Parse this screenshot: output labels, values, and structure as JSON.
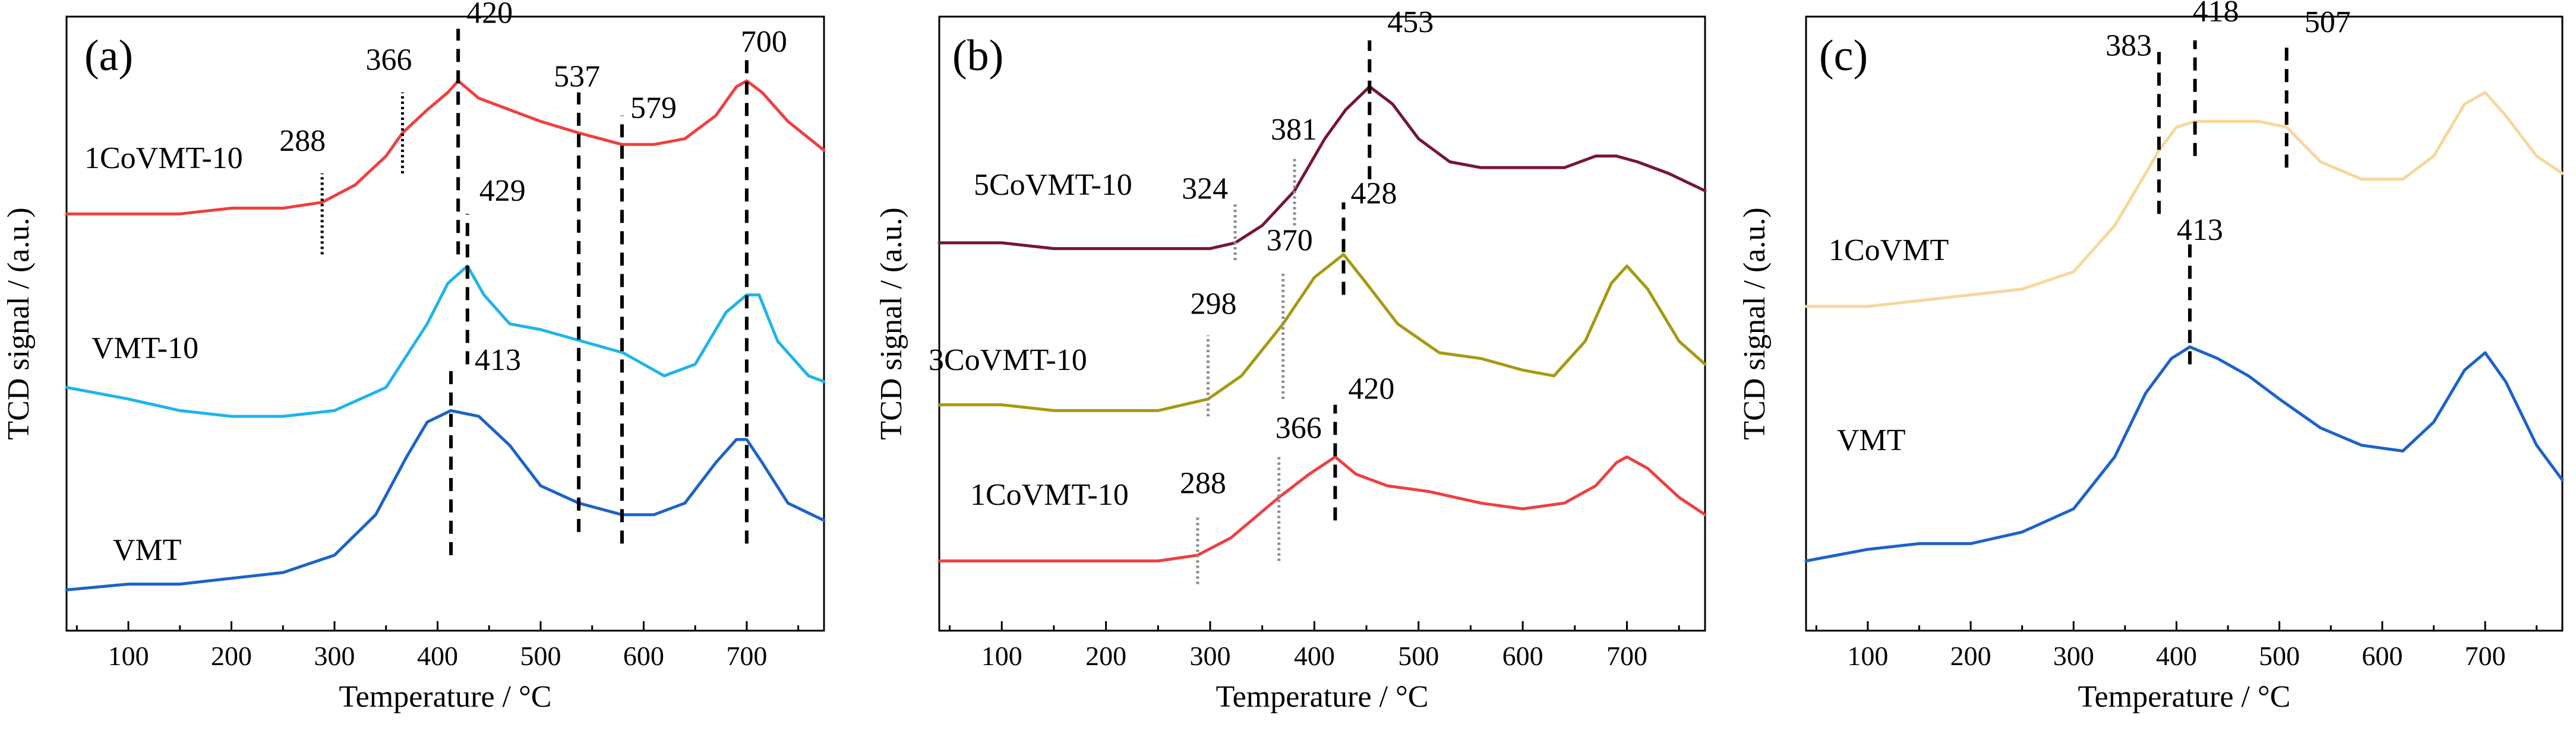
{
  "figure": {
    "xlabel": "Temperature / °C",
    "ylabel": "TCD signal / (a.u.)",
    "xlim": [
      40,
      775
    ],
    "x_ticks": [
      100,
      200,
      300,
      400,
      500,
      600,
      700
    ]
  },
  "colors": {
    "VMT": "#1c63c9",
    "VMT-10": "#1fb4ec",
    "1CoVMT-10": "#ee4040",
    "3CoVMT-10": "#a59a12",
    "5CoVMT-10": "#76143c",
    "1CoVMT": "#f7d79b",
    "black_marker": "#000000",
    "gray_marker": "#8c8c8c"
  },
  "chart_data": [
    {
      "type": "line",
      "panel": "(a)",
      "xlabel": "Temperature / °C",
      "ylabel": "TCD signal / (a.u.)",
      "xlim": [
        40,
        775
      ],
      "ylim": [
        0,
        1
      ],
      "series": [
        {
          "name": "1CoVMT-10",
          "x": [
            40,
            100,
            150,
            200,
            250,
            288,
            320,
            350,
            366,
            390,
            410,
            420,
            440,
            470,
            500,
            537,
            579,
            610,
            640,
            670,
            690,
            700,
            715,
            740,
            775
          ],
          "y": [
            0.7,
            0.7,
            0.7,
            0.71,
            0.71,
            0.72,
            0.75,
            0.8,
            0.84,
            0.88,
            0.91,
            0.93,
            0.9,
            0.88,
            0.86,
            0.84,
            0.82,
            0.82,
            0.83,
            0.87,
            0.92,
            0.93,
            0.91,
            0.86,
            0.81
          ]
        },
        {
          "name": "VMT-10",
          "x": [
            40,
            100,
            150,
            200,
            250,
            300,
            350,
            390,
            410,
            429,
            445,
            470,
            500,
            540,
            580,
            620,
            650,
            680,
            700,
            712,
            730,
            760,
            775
          ],
          "y": [
            0.4,
            0.38,
            0.36,
            0.35,
            0.35,
            0.36,
            0.4,
            0.51,
            0.58,
            0.61,
            0.56,
            0.51,
            0.5,
            0.48,
            0.46,
            0.42,
            0.44,
            0.53,
            0.56,
            0.56,
            0.48,
            0.42,
            0.41
          ]
        },
        {
          "name": "VMT",
          "x": [
            40,
            100,
            150,
            200,
            250,
            300,
            340,
            370,
            390,
            413,
            440,
            470,
            500,
            537,
            579,
            610,
            640,
            670,
            690,
            700,
            715,
            740,
            775
          ],
          "y": [
            0.05,
            0.06,
            0.06,
            0.07,
            0.08,
            0.11,
            0.18,
            0.28,
            0.34,
            0.36,
            0.35,
            0.3,
            0.23,
            0.2,
            0.18,
            0.18,
            0.2,
            0.27,
            0.31,
            0.31,
            0.27,
            0.2,
            0.17
          ]
        }
      ],
      "series_labels": [
        {
          "text": "1CoVMT-10",
          "series": "1CoVMT-10"
        },
        {
          "text": "VMT-10",
          "series": "VMT-10"
        },
        {
          "text": "VMT",
          "series": "VMT"
        }
      ],
      "markers": [
        {
          "x": 288,
          "label": "288",
          "style": "dotted",
          "color": "black_marker",
          "y_from": 0.63,
          "y_to": 0.77
        },
        {
          "x": 366,
          "label": "366",
          "style": "dotted",
          "color": "black_marker",
          "y_from": 0.77,
          "y_to": 0.91
        },
        {
          "x": 420,
          "label": "420",
          "style": "dashed",
          "color": "black_marker",
          "y_from": 0.63,
          "y_to": 1.02
        },
        {
          "x": 537,
          "label": "537",
          "style": "dashed",
          "color": "black_marker",
          "y_from": 0.15,
          "y_to": 0.91
        },
        {
          "x": 579,
          "label": "579",
          "style": "dashed",
          "color": "black_marker",
          "y_from": 0.13,
          "y_to": 0.87
        },
        {
          "x": 700,
          "label": "700",
          "style": "dashed",
          "color": "black_marker",
          "y_from": 0.13,
          "y_to": 0.97
        },
        {
          "x": 429,
          "label": "429",
          "style": "dashed",
          "color": "black_marker",
          "y_from": 0.44,
          "y_to": 0.7
        },
        {
          "x": 413,
          "label": "413",
          "style": "dashed",
          "color": "black_marker",
          "y_from": 0.11,
          "y_to": 0.43
        }
      ]
    },
    {
      "type": "line",
      "panel": "(b)",
      "xlabel": "Temperature / °C",
      "ylabel": "TCD signal / (a.u.)",
      "xlim": [
        40,
        775
      ],
      "ylim": [
        0,
        1
      ],
      "series": [
        {
          "name": "5CoVMT-10",
          "x": [
            40,
            100,
            150,
            200,
            250,
            300,
            324,
            350,
            381,
            410,
            430,
            453,
            475,
            500,
            530,
            560,
            600,
            640,
            670,
            690,
            710,
            740,
            775
          ],
          "y": [
            0.65,
            0.65,
            0.64,
            0.64,
            0.64,
            0.64,
            0.65,
            0.68,
            0.74,
            0.83,
            0.88,
            0.92,
            0.89,
            0.83,
            0.79,
            0.78,
            0.78,
            0.78,
            0.8,
            0.8,
            0.79,
            0.77,
            0.74
          ]
        },
        {
          "name": "3CoVMT-10",
          "x": [
            40,
            100,
            150,
            200,
            250,
            298,
            330,
            370,
            400,
            428,
            450,
            480,
            520,
            560,
            600,
            630,
            660,
            685,
            700,
            720,
            750,
            775
          ],
          "y": [
            0.37,
            0.37,
            0.36,
            0.36,
            0.36,
            0.38,
            0.42,
            0.51,
            0.59,
            0.63,
            0.58,
            0.51,
            0.46,
            0.45,
            0.43,
            0.42,
            0.48,
            0.58,
            0.61,
            0.57,
            0.48,
            0.44
          ]
        },
        {
          "name": "1CoVMT-10",
          "x": [
            40,
            100,
            150,
            200,
            250,
            288,
            320,
            366,
            395,
            420,
            440,
            470,
            510,
            560,
            600,
            640,
            670,
            690,
            700,
            720,
            750,
            775
          ],
          "y": [
            0.1,
            0.1,
            0.1,
            0.1,
            0.1,
            0.11,
            0.14,
            0.21,
            0.25,
            0.28,
            0.25,
            0.23,
            0.22,
            0.2,
            0.19,
            0.2,
            0.23,
            0.27,
            0.28,
            0.26,
            0.21,
            0.18
          ]
        }
      ],
      "series_labels": [
        {
          "text": "5CoVMT-10",
          "series": "5CoVMT-10"
        },
        {
          "text": "3CoVMT-10",
          "series": "3CoVMT-10"
        },
        {
          "text": "1CoVMT-10",
          "series": "1CoVMT-10"
        }
      ],
      "markers": [
        {
          "x": 453,
          "label": "453",
          "style": "dashed",
          "color": "black_marker",
          "y_from": 0.76,
          "y_to": 1.0
        },
        {
          "x": 381,
          "label": "381",
          "style": "dotted",
          "color": "gray_marker",
          "y_from": 0.68,
          "y_to": 0.8
        },
        {
          "x": 324,
          "label": "324",
          "style": "dotted",
          "color": "gray_marker",
          "y_from": 0.62,
          "y_to": 0.72
        },
        {
          "x": 428,
          "label": "428",
          "style": "dashed",
          "color": "black_marker",
          "y_from": 0.56,
          "y_to": 0.72
        },
        {
          "x": 370,
          "label": "370",
          "style": "dotted",
          "color": "gray_marker",
          "y_from": 0.38,
          "y_to": 0.6
        },
        {
          "x": 298,
          "label": "298",
          "style": "dotted",
          "color": "gray_marker",
          "y_from": 0.35,
          "y_to": 0.49
        },
        {
          "x": 420,
          "label": "420",
          "style": "dashed",
          "color": "black_marker",
          "y_from": 0.17,
          "y_to": 0.37
        },
        {
          "x": 366,
          "label": "366",
          "style": "dotted",
          "color": "gray_marker",
          "y_from": 0.1,
          "y_to": 0.28
        },
        {
          "x": 288,
          "label": "288",
          "style": "dotted",
          "color": "gray_marker",
          "y_from": 0.06,
          "y_to": 0.18
        }
      ]
    },
    {
      "type": "line",
      "panel": "(c)",
      "xlabel": "Temperature / °C",
      "ylabel": "TCD signal / (a.u.)",
      "xlim": [
        40,
        775
      ],
      "ylim": [
        0,
        1
      ],
      "series": [
        {
          "name": "1CoVMT",
          "x": [
            40,
            100,
            150,
            200,
            250,
            300,
            340,
            370,
            383,
            400,
            418,
            450,
            480,
            507,
            540,
            580,
            620,
            650,
            680,
            700,
            720,
            750,
            775
          ],
          "y": [
            0.54,
            0.54,
            0.55,
            0.56,
            0.57,
            0.6,
            0.68,
            0.77,
            0.81,
            0.85,
            0.86,
            0.86,
            0.86,
            0.85,
            0.79,
            0.76,
            0.76,
            0.8,
            0.89,
            0.91,
            0.87,
            0.8,
            0.77
          ]
        },
        {
          "name": "VMT",
          "x": [
            40,
            100,
            150,
            200,
            250,
            300,
            340,
            370,
            395,
            413,
            440,
            470,
            500,
            540,
            580,
            620,
            650,
            680,
            700,
            720,
            750,
            775
          ],
          "y": [
            0.1,
            0.12,
            0.13,
            0.13,
            0.15,
            0.19,
            0.28,
            0.39,
            0.45,
            0.47,
            0.45,
            0.42,
            0.38,
            0.33,
            0.3,
            0.29,
            0.34,
            0.43,
            0.46,
            0.41,
            0.3,
            0.24
          ]
        }
      ],
      "series_labels": [
        {
          "text": "1CoVMT",
          "series": "1CoVMT"
        },
        {
          "text": "VMT",
          "series": "VMT"
        }
      ],
      "markers": [
        {
          "x": 383,
          "label": "383",
          "style": "dashed",
          "color": "black_marker",
          "y_from": 0.7,
          "y_to": 0.98
        },
        {
          "x": 418,
          "label": "418",
          "style": "dashed",
          "color": "black_marker",
          "y_from": 0.8,
          "y_to": 1.0
        },
        {
          "x": 507,
          "label": "507",
          "style": "dashed",
          "color": "black_marker",
          "y_from": 0.78,
          "y_to": 1.0
        },
        {
          "x": 413,
          "label": "413",
          "style": "dashed",
          "color": "black_marker",
          "y_from": 0.44,
          "y_to": 0.66
        }
      ]
    }
  ]
}
